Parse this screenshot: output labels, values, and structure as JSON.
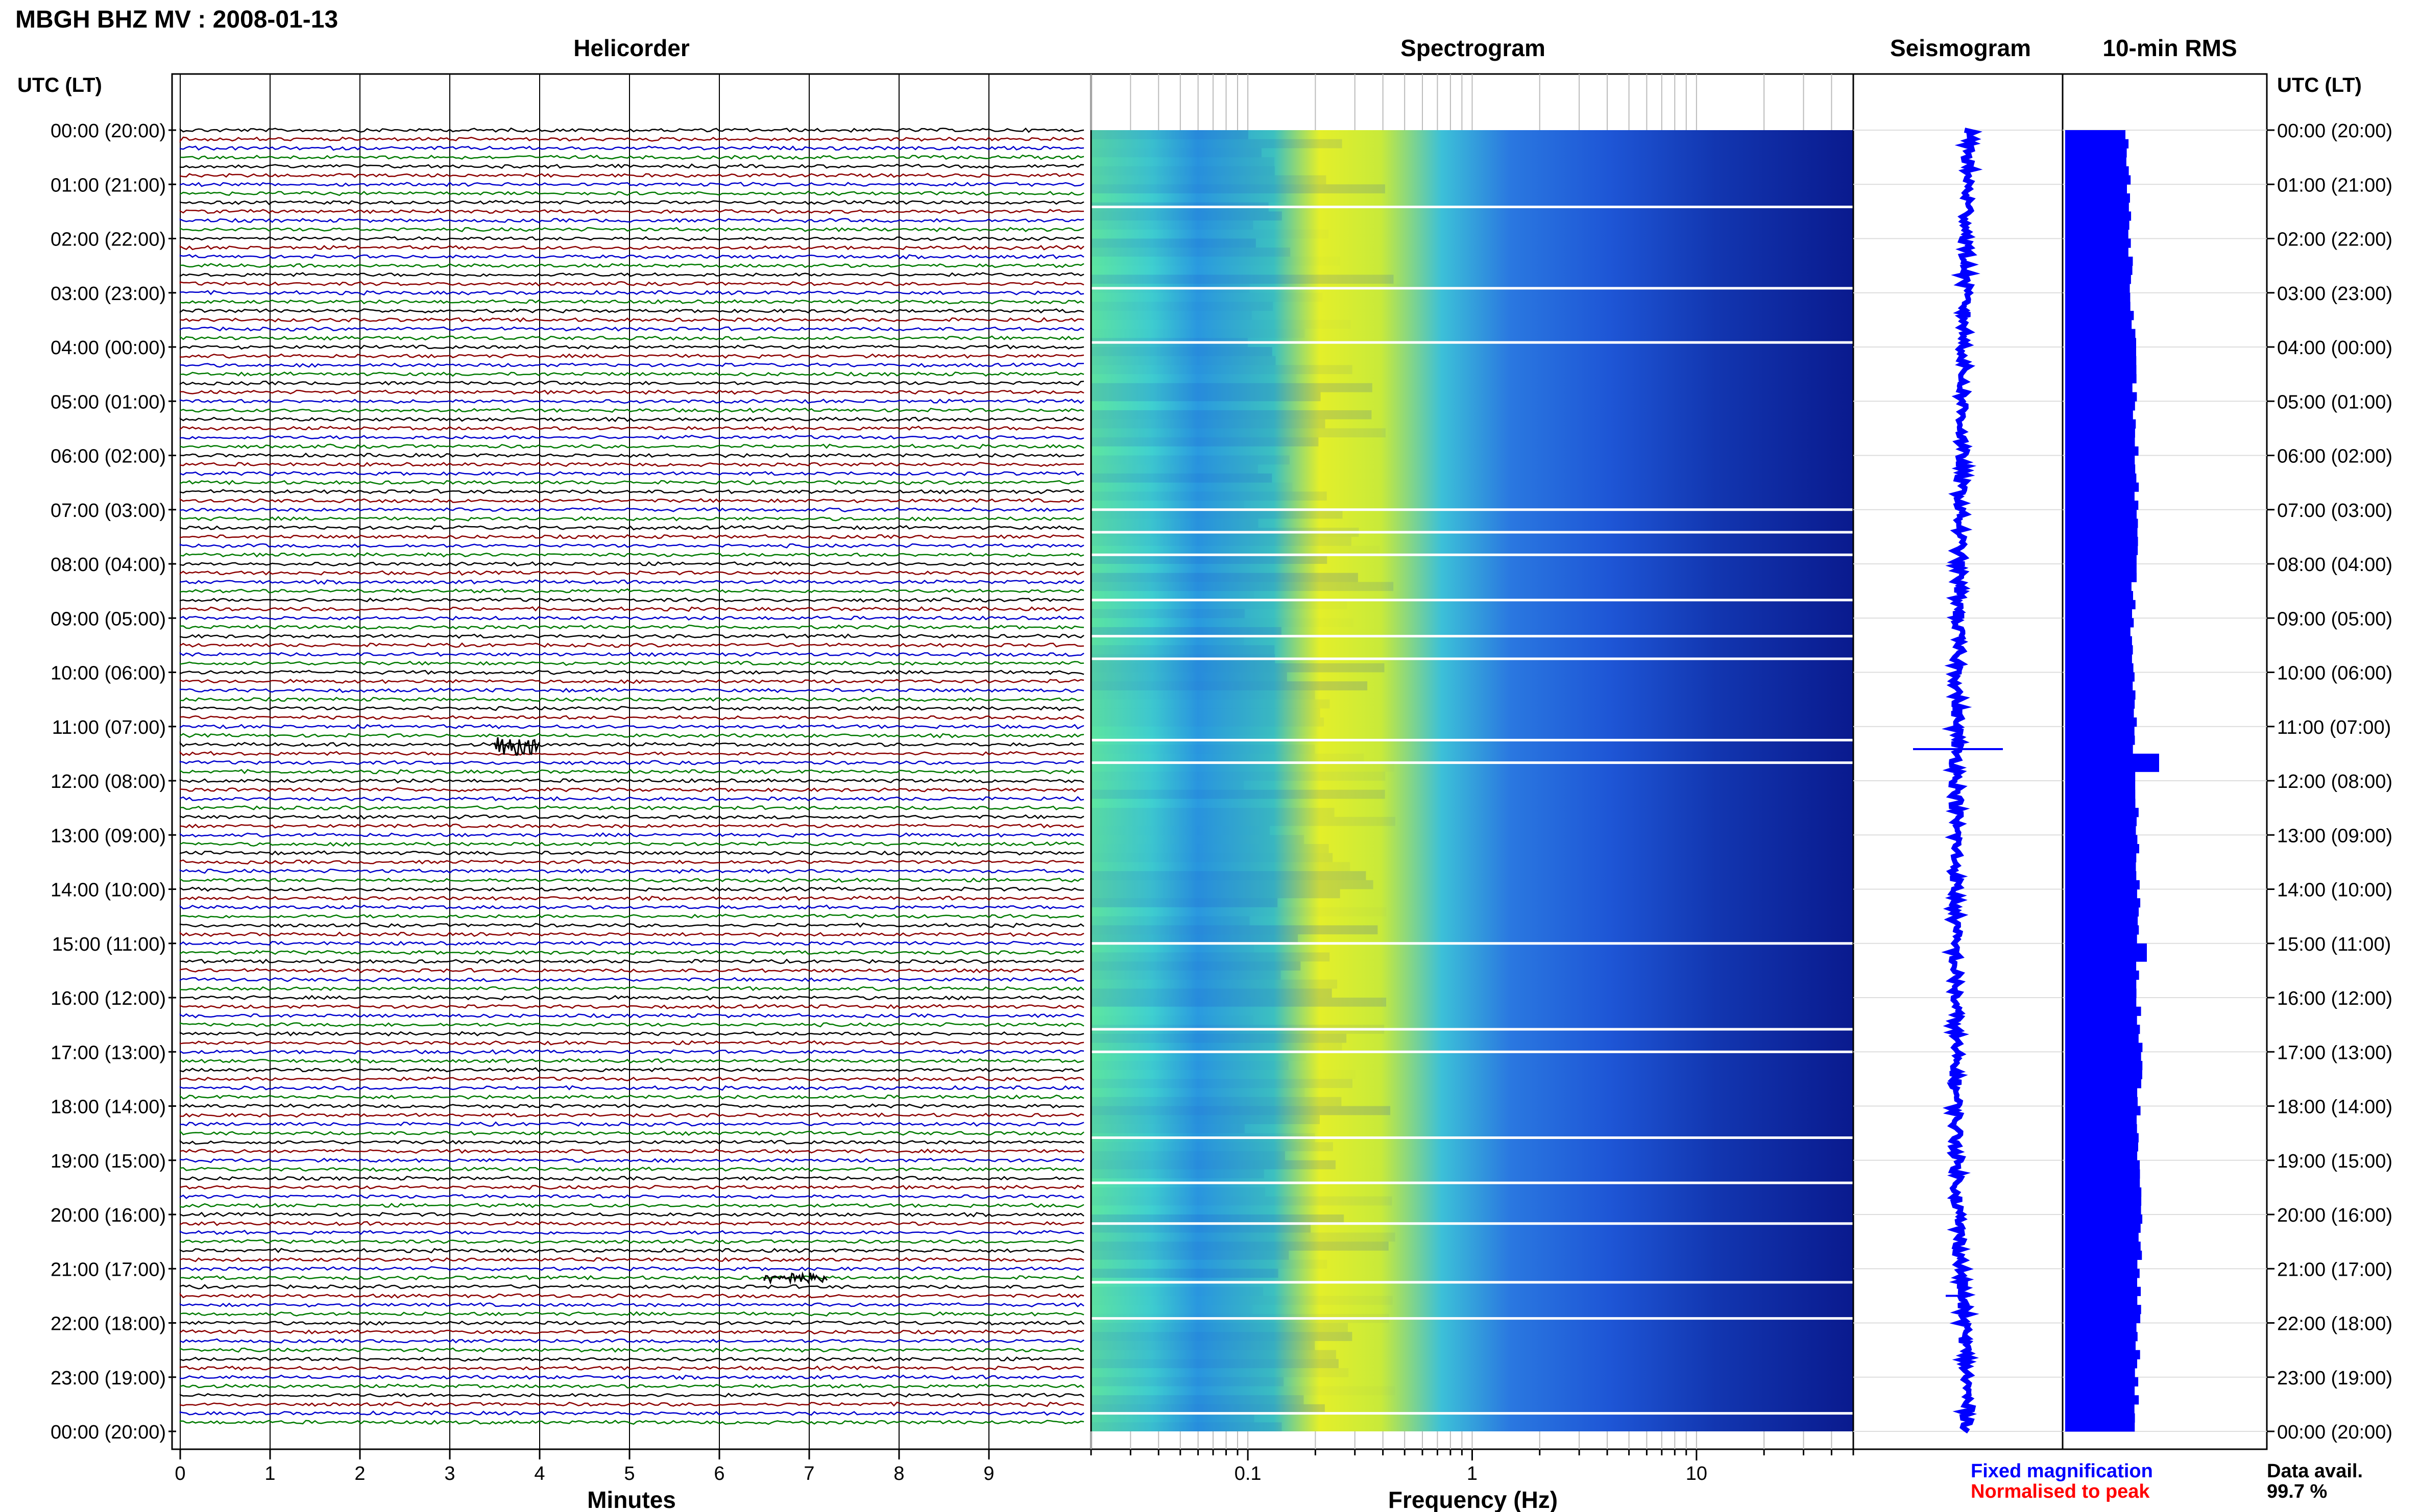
{
  "page": {
    "title": "MBGH BHZ MV : 2008-01-13",
    "time_axis_label": "UTC (LT)"
  },
  "panels": {
    "helicorder_title": "Helicorder",
    "spectrogram_title": "Spectrogram",
    "seismogram_title": "Seismogram",
    "rms_title": "10-min RMS"
  },
  "legend": {
    "fixed_magnification": "Fixed magnification",
    "normalised_to_peak": "Normalised to peak",
    "data_avail_label": "Data avail.",
    "data_avail_value": "99.7 %"
  },
  "colors": {
    "helicorder_traces": [
      "#000000",
      "#8b0000",
      "#0000cd",
      "#007a00"
    ],
    "seismogram_trace": "#0000ff",
    "rms_bars": "#0000ff",
    "spectrogram_low": "#0a1a9a",
    "spectrogram_mid": "#29a3e8",
    "spectrogram_high": "#f2f21a"
  },
  "chart_data": [
    {
      "type": "line",
      "name": "helicorder",
      "title": "Helicorder",
      "xlabel": "Minutes",
      "xlim": [
        0,
        10
      ],
      "x_ticks": [
        0,
        1,
        2,
        3,
        4,
        5,
        6,
        7,
        8,
        9
      ],
      "traces_per_hour": 6,
      "trace_count": 144,
      "events": [
        {
          "time": "11:20",
          "minute_start": 3.5,
          "minute_end": 4.0,
          "amplitude": "large"
        },
        {
          "time": "21:10",
          "minute_start": 6.5,
          "minute_end": 7.2,
          "amplitude": "moderate"
        }
      ]
    },
    {
      "type": "heatmap",
      "name": "spectrogram",
      "title": "Spectrogram",
      "xlabel": "Frequency (Hz)",
      "x_scale": "log",
      "xlim": [
        0.02,
        50
      ],
      "x_ticks": [
        0.1,
        1,
        10
      ],
      "x_tick_labels": [
        "0.1",
        "1",
        "10"
      ],
      "peak_band_hz": [
        0.2,
        0.5
      ],
      "gaps_utc": [
        "01:25",
        "02:55",
        "03:55",
        "07:00",
        "07:25",
        "07:50",
        "08:40",
        "09:20",
        "09:45",
        "11:15",
        "11:40",
        "15:00",
        "16:35",
        "17:00",
        "18:35",
        "19:25",
        "20:10",
        "21:15",
        "21:55",
        "23:40"
      ]
    },
    {
      "type": "line",
      "name": "seismogram",
      "title": "Seismogram",
      "hourly_centre_offset": [
        0.55,
        0.48,
        0.42,
        0.35,
        0.3,
        0.22,
        0.18,
        0.12,
        0.06,
        0.02,
        -0.02,
        -0.05,
        -0.06,
        -0.08,
        -0.12,
        -0.15,
        -0.1,
        -0.12,
        -0.1,
        -0.05,
        0.02,
        0.15,
        0.3,
        0.42,
        0.5
      ],
      "events": [
        {
          "time": "11:25",
          "amplitude": 2.2
        },
        {
          "time": "21:30",
          "amplitude": 0.6
        }
      ]
    },
    {
      "type": "bar",
      "name": "rms",
      "title": "10-min RMS",
      "bar_count": 144,
      "hourly_level": [
        0.6,
        0.62,
        0.64,
        0.66,
        0.68,
        0.68,
        0.7,
        0.7,
        0.68,
        0.66,
        0.66,
        0.68,
        0.7,
        0.7,
        0.72,
        0.72,
        0.72,
        0.74,
        0.72,
        0.72,
        0.74,
        0.72,
        0.72,
        0.7,
        0.7
      ],
      "peaks": [
        {
          "time": "11:30",
          "value": 0.92
        },
        {
          "time": "15:00",
          "value": 0.8
        }
      ]
    }
  ],
  "hour_labels": [
    "00:00 (20:00)",
    "01:00 (21:00)",
    "02:00 (22:00)",
    "03:00 (23:00)",
    "04:00 (00:00)",
    "05:00 (01:00)",
    "06:00 (02:00)",
    "07:00 (03:00)",
    "08:00 (04:00)",
    "09:00 (05:00)",
    "10:00 (06:00)",
    "11:00 (07:00)",
    "12:00 (08:00)",
    "13:00 (09:00)",
    "14:00 (10:00)",
    "15:00 (11:00)",
    "16:00 (12:00)",
    "17:00 (13:00)",
    "18:00 (14:00)",
    "19:00 (15:00)",
    "20:00 (16:00)",
    "21:00 (17:00)",
    "22:00 (18:00)",
    "23:00 (19:00)",
    "00:00 (20:00)"
  ]
}
